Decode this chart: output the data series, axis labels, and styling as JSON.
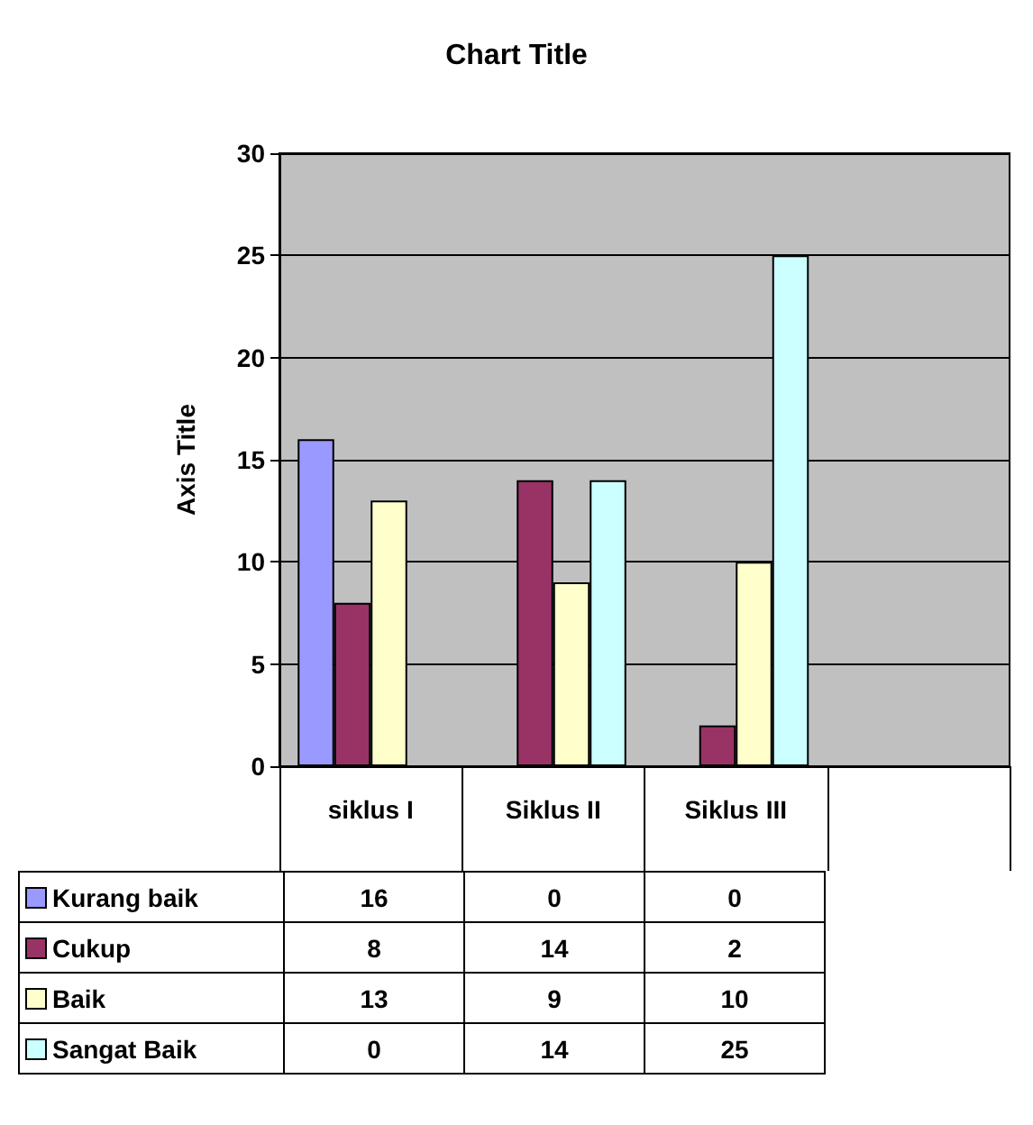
{
  "chart_data": {
    "type": "bar",
    "title": "Chart Title",
    "ylabel": "Axis Title",
    "categories": [
      "siklus I",
      "Siklus II",
      "Siklus III",
      null
    ],
    "series": [
      {
        "name": "Kurang baik",
        "color": "#9999ff",
        "values": [
          16,
          0,
          0,
          null
        ]
      },
      {
        "name": "Cukup",
        "color": "#993366",
        "values": [
          8,
          14,
          2,
          null
        ]
      },
      {
        "name": "Baik",
        "color": "#ffffcc",
        "values": [
          13,
          9,
          10,
          null
        ]
      },
      {
        "name": "Sangat Baik",
        "color": "#ccffff",
        "values": [
          0,
          14,
          25,
          null
        ]
      }
    ],
    "ylim": [
      0,
      30
    ],
    "yticks": [
      0,
      5,
      10,
      15,
      20,
      25,
      30
    ],
    "grid": "y",
    "legend": "bottom",
    "data_labels": true
  }
}
